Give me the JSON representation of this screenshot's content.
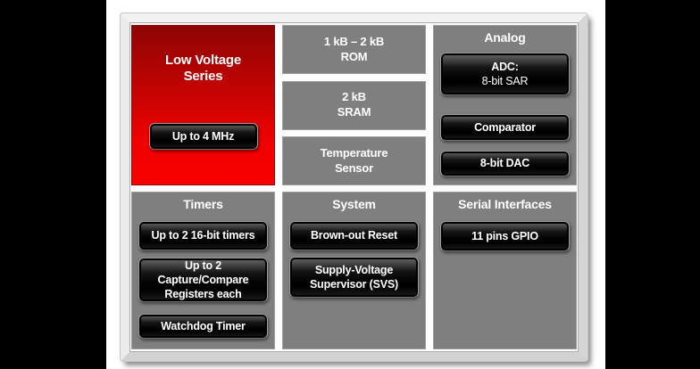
{
  "colors": {
    "pillarbox": "#000000",
    "slide_bg": "#ffffff",
    "panel_gray": "#7f7f7f",
    "red_top": "#8e0404",
    "red_bottom": "#fa0000",
    "button_black": "#000000",
    "text": "#ffffff"
  },
  "diagram": {
    "low_voltage": {
      "title": [
        "Low Voltage",
        "Series"
      ],
      "button": "Up to 4 MHz"
    },
    "memory": {
      "boxes": [
        [
          "1 kB – 2 kB",
          "ROM"
        ],
        [
          "2 kB",
          "SRAM"
        ],
        [
          "Temperature",
          "Sensor"
        ]
      ]
    },
    "analog": {
      "title": "Analog",
      "buttons": [
        [
          "ADC:",
          "8-bit SAR"
        ],
        [
          "Comparator"
        ],
        [
          "8-bit DAC"
        ]
      ]
    },
    "timers": {
      "title": "Timers",
      "buttons": [
        [
          "Up to 2 16-bit timers"
        ],
        [
          "Up to 2",
          "Capture/Compare",
          "Registers each"
        ],
        [
          "Watchdog Timer"
        ]
      ]
    },
    "system": {
      "title": "System",
      "buttons": [
        [
          "Brown-out Reset"
        ],
        [
          "Supply-Voltage",
          "Supervisor (SVS)"
        ]
      ]
    },
    "serial": {
      "title": "Serial Interfaces",
      "buttons": [
        [
          "11 pins GPIO"
        ]
      ]
    }
  }
}
